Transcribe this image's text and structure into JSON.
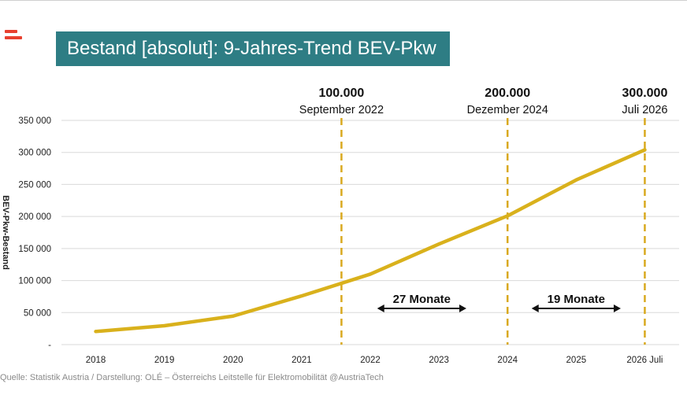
{
  "slide": {
    "title": "Bestand [absolut]: 9-Jahres-Trend BEV-Pkw",
    "source": "Quelle: Statistik Austria / Darstellung: OLÉ – Österreichs Leitstelle für Elektromobilität @AustriaTech",
    "brand_color": "#e8402f",
    "title_bg": "#2e7d84"
  },
  "chart_data": {
    "type": "line",
    "categories": [
      "2018",
      "2019",
      "2020",
      "2021",
      "2022",
      "2023",
      "2024",
      "2025",
      "2026 Juli"
    ],
    "series": [
      {
        "values": [
          20500,
          29500,
          44500,
          76000,
          110000,
          157000,
          201000,
          257000,
          304000
        ],
        "color": "#d9b11c"
      }
    ],
    "ylim": [
      0,
      350000
    ],
    "yticks": [
      {
        "value": 0,
        "label": "-"
      },
      {
        "value": 50000,
        "label": "50 000"
      },
      {
        "value": 100000,
        "label": "100 000"
      },
      {
        "value": 150000,
        "label": "150 000"
      },
      {
        "value": 200000,
        "label": "200 000"
      },
      {
        "value": 250000,
        "label": "250 000"
      },
      {
        "value": 300000,
        "label": "300 000"
      },
      {
        "value": 350000,
        "label": "350 000"
      }
    ],
    "ylabel": "BEV-Pkw-Bestand",
    "grid": true,
    "milestones": [
      {
        "x": 3.58,
        "value": "100.000",
        "date": "September 2022"
      },
      {
        "x": 6.0,
        "value": "200.000",
        "date": "Dezember 2024"
      },
      {
        "x": 8.0,
        "value": "300.000",
        "date": "Juli 2026"
      }
    ],
    "intervals": [
      {
        "from": 4.1,
        "to": 5.4,
        "label": "27 Monate"
      },
      {
        "from": 6.35,
        "to": 7.65,
        "label": "19 Monate"
      }
    ],
    "milestone_color": "#d9a91f"
  }
}
